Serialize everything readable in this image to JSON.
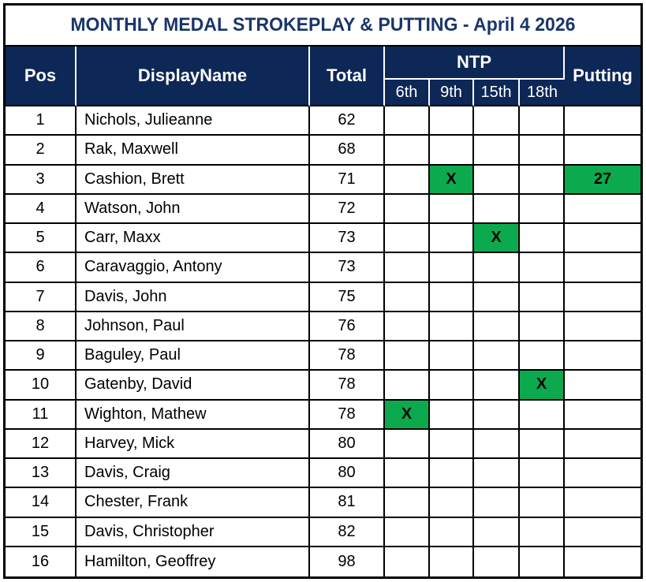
{
  "title": "MONTHLY MEDAL STROKEPLAY & PUTTING - April 4 2026",
  "colors": {
    "header_bg": "#0d2757",
    "header_text": "#ffffff",
    "title_text": "#1a3668",
    "highlight_green": "#0caa4f",
    "grid": "#000000"
  },
  "table": {
    "header": {
      "pos": "Pos",
      "display_name": "DisplayName",
      "total": "Total",
      "ntp": "NTP",
      "ntp_subs": [
        "6th",
        "9th",
        "15th",
        "18th"
      ],
      "putting": "Putting"
    },
    "rows": [
      {
        "pos": "1",
        "name": "Nichols, Julieanne",
        "total": "62",
        "ntp_6th": "",
        "ntp_9th": "",
        "ntp_15th": "",
        "ntp_18th": "",
        "putting": ""
      },
      {
        "pos": "2",
        "name": "Rak, Maxwell",
        "total": "68",
        "ntp_6th": "",
        "ntp_9th": "",
        "ntp_15th": "",
        "ntp_18th": "",
        "putting": ""
      },
      {
        "pos": "3",
        "name": "Cashion, Brett",
        "total": "71",
        "ntp_6th": "",
        "ntp_9th": "X",
        "ntp_15th": "",
        "ntp_18th": "",
        "putting": "27"
      },
      {
        "pos": "4",
        "name": "Watson, John",
        "total": "72",
        "ntp_6th": "",
        "ntp_9th": "",
        "ntp_15th": "",
        "ntp_18th": "",
        "putting": ""
      },
      {
        "pos": "5",
        "name": "Carr, Maxx",
        "total": "73",
        "ntp_6th": "",
        "ntp_9th": "",
        "ntp_15th": "X",
        "ntp_18th": "",
        "putting": ""
      },
      {
        "pos": "6",
        "name": "Caravaggio, Antony",
        "total": "73",
        "ntp_6th": "",
        "ntp_9th": "",
        "ntp_15th": "",
        "ntp_18th": "",
        "putting": ""
      },
      {
        "pos": "7",
        "name": "Davis, John",
        "total": "75",
        "ntp_6th": "",
        "ntp_9th": "",
        "ntp_15th": "",
        "ntp_18th": "",
        "putting": ""
      },
      {
        "pos": "8",
        "name": "Johnson, Paul",
        "total": "76",
        "ntp_6th": "",
        "ntp_9th": "",
        "ntp_15th": "",
        "ntp_18th": "",
        "putting": ""
      },
      {
        "pos": "9",
        "name": "Baguley, Paul",
        "total": "78",
        "ntp_6th": "",
        "ntp_9th": "",
        "ntp_15th": "",
        "ntp_18th": "",
        "putting": ""
      },
      {
        "pos": "10",
        "name": "Gatenby, David",
        "total": "78",
        "ntp_6th": "",
        "ntp_9th": "",
        "ntp_15th": "",
        "ntp_18th": "X",
        "putting": ""
      },
      {
        "pos": "11",
        "name": "Wighton, Mathew",
        "total": "78",
        "ntp_6th": "X",
        "ntp_9th": "",
        "ntp_15th": "",
        "ntp_18th": "",
        "putting": ""
      },
      {
        "pos": "12",
        "name": "Harvey, Mick",
        "total": "80",
        "ntp_6th": "",
        "ntp_9th": "",
        "ntp_15th": "",
        "ntp_18th": "",
        "putting": ""
      },
      {
        "pos": "13",
        "name": "Davis, Craig",
        "total": "80",
        "ntp_6th": "",
        "ntp_9th": "",
        "ntp_15th": "",
        "ntp_18th": "",
        "putting": ""
      },
      {
        "pos": "14",
        "name": "Chester, Frank",
        "total": "81",
        "ntp_6th": "",
        "ntp_9th": "",
        "ntp_15th": "",
        "ntp_18th": "",
        "putting": ""
      },
      {
        "pos": "15",
        "name": "Davis, Christopher",
        "total": "82",
        "ntp_6th": "",
        "ntp_9th": "",
        "ntp_15th": "",
        "ntp_18th": "",
        "putting": ""
      },
      {
        "pos": "16",
        "name": "Hamilton, Geoffrey",
        "total": "98",
        "ntp_6th": "",
        "ntp_9th": "",
        "ntp_15th": "",
        "ntp_18th": "",
        "putting": ""
      }
    ]
  }
}
